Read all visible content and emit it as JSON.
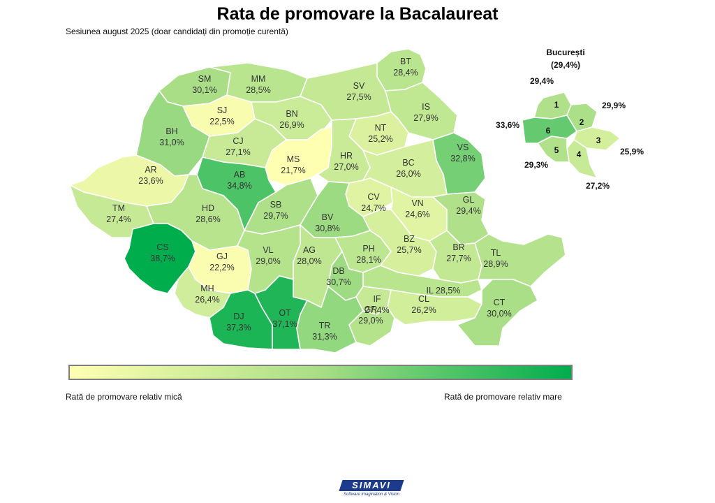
{
  "title": "Rata de promovare la Bacalaureat",
  "subtitle": "Sesiunea august 2025 (doar candidați din promoție curentă)",
  "scale": {
    "min": 21.7,
    "max": 38.7,
    "color_low": "#ffffb2",
    "color_mid": "#a8de86",
    "color_high": "#00ad4c"
  },
  "counties": [
    {
      "code": "SM",
      "value": 30.1,
      "label": "30,1%"
    },
    {
      "code": "MM",
      "value": 28.5,
      "label": "28,5%"
    },
    {
      "code": "BT",
      "value": 28.4,
      "label": "28,4%"
    },
    {
      "code": "SV",
      "value": 27.5,
      "label": "27,5%"
    },
    {
      "code": "SJ",
      "value": 22.5,
      "label": "22,5%"
    },
    {
      "code": "BN",
      "value": 26.9,
      "label": "26,9%"
    },
    {
      "code": "IS",
      "value": 27.9,
      "label": "27,9%"
    },
    {
      "code": "BH",
      "value": 31.0,
      "label": "31,0%"
    },
    {
      "code": "CJ",
      "value": 27.1,
      "label": "27,1%"
    },
    {
      "code": "NT",
      "value": 25.2,
      "label": "25,2%"
    },
    {
      "code": "MS",
      "value": 21.7,
      "label": "21,7%"
    },
    {
      "code": "HR",
      "value": 27.0,
      "label": "27,0%"
    },
    {
      "code": "VS",
      "value": 32.8,
      "label": "32,8%"
    },
    {
      "code": "AR",
      "value": 23.6,
      "label": "23,6%"
    },
    {
      "code": "AB",
      "value": 34.8,
      "label": "34,8%"
    },
    {
      "code": "BC",
      "value": 26.0,
      "label": "26,0%"
    },
    {
      "code": "CV",
      "value": 24.7,
      "label": "24,7%"
    },
    {
      "code": "TM",
      "value": 27.4,
      "label": "27,4%"
    },
    {
      "code": "HD",
      "value": 28.6,
      "label": "28,6%"
    },
    {
      "code": "SB",
      "value": 29.7,
      "label": "29,7%"
    },
    {
      "code": "BV",
      "value": 30.8,
      "label": "30,8%"
    },
    {
      "code": "VN",
      "value": 24.6,
      "label": "24,6%"
    },
    {
      "code": "GL",
      "value": 29.4,
      "label": "29,4%"
    },
    {
      "code": "CS",
      "value": 38.7,
      "label": "38,7%"
    },
    {
      "code": "GJ",
      "value": 22.2,
      "label": "22,2%"
    },
    {
      "code": "VL",
      "value": 29.0,
      "label": "29,0%"
    },
    {
      "code": "AG",
      "value": 28.0,
      "label": "28,0%"
    },
    {
      "code": "PH",
      "value": 28.1,
      "label": "28,1%"
    },
    {
      "code": "BZ",
      "value": 25.7,
      "label": "25,7%"
    },
    {
      "code": "BR",
      "value": 27.7,
      "label": "27,7%"
    },
    {
      "code": "TL",
      "value": 28.9,
      "label": "28,9%"
    },
    {
      "code": "MH",
      "value": 26.4,
      "label": "26,4%"
    },
    {
      "code": "DB",
      "value": 30.7,
      "label": "30,7%"
    },
    {
      "code": "IL",
      "value": 28.5,
      "label": "IL 28,5%"
    },
    {
      "code": "IF",
      "value": 27.4,
      "label": "27,4%"
    },
    {
      "code": "DJ",
      "value": 37.3,
      "label": "37,3%"
    },
    {
      "code": "OT",
      "value": 37.1,
      "label": "37,1%"
    },
    {
      "code": "TR",
      "value": 31.3,
      "label": "31,3%"
    },
    {
      "code": "GR",
      "value": 29.0,
      "label": "29,0%"
    },
    {
      "code": "CL",
      "value": 26.2,
      "label": "26,2%"
    },
    {
      "code": "CT",
      "value": 30.0,
      "label": "30,0%"
    }
  ],
  "bucuresti": {
    "title": "București",
    "total": "(29,4%)",
    "sectors": [
      {
        "code": "1",
        "value": 29.4,
        "label": "29,4%"
      },
      {
        "code": "2",
        "value": 29.9,
        "label": "29,9%"
      },
      {
        "code": "3",
        "value": 25.9,
        "label": "25,9%"
      },
      {
        "code": "4",
        "value": 27.2,
        "label": "27,2%"
      },
      {
        "code": "5",
        "value": 29.3,
        "label": "29,3%"
      },
      {
        "code": "6",
        "value": 33.6,
        "label": "33,6%"
      }
    ]
  },
  "legend": {
    "low_label": "Rată de promovare relativ mică",
    "high_label": "Rată de promovare relativ mare"
  },
  "logo": {
    "name": "SIMAVI",
    "tagline": "Software Imagination & Vision"
  }
}
